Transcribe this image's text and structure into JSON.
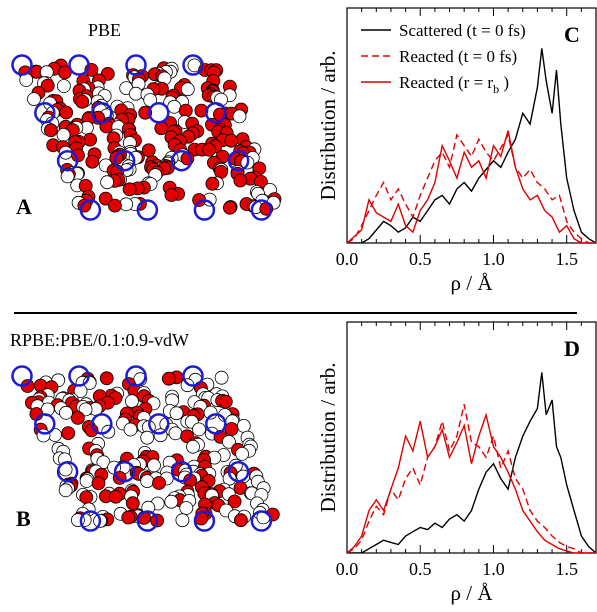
{
  "figure": {
    "panel_a_title": "PBE",
    "panel_b_title": "RPBE:PBE/0.1:0.9-vdW",
    "panel_a_letter": "A",
    "panel_b_letter": "B",
    "panel_c_letter": "C",
    "panel_d_letter": "D",
    "colors": {
      "scattered": "#000000",
      "reacted": "#e00000",
      "ring": "#1c1cd6",
      "site_fill": "#e00000",
      "site_open": "#ffffff"
    }
  },
  "structure_panels": [
    {
      "id": "A",
      "description_icon": "lattice-configuration-icon",
      "ring_marker_color": "blue",
      "filled_marker_color": "red"
    },
    {
      "id": "B",
      "description_icon": "lattice-configuration-icon",
      "ring_marker_color": "blue",
      "filled_marker_color": "red"
    }
  ],
  "chart_data": [
    {
      "type": "line",
      "panel": "C",
      "xlabel": "ρ / Å",
      "ylabel": "Distribution / arb.",
      "xlim": [
        0.0,
        1.7
      ],
      "xticks": [
        "0.0",
        "0.5",
        "1.0",
        "1.5"
      ],
      "legend_position": "top-left",
      "series": [
        {
          "name": "Scattered (t = 0 fs)",
          "style": "solid",
          "color": "#000000",
          "x": [
            0.0,
            0.05,
            0.1,
            0.15,
            0.2,
            0.25,
            0.3,
            0.35,
            0.4,
            0.45,
            0.5,
            0.55,
            0.6,
            0.65,
            0.7,
            0.75,
            0.8,
            0.85,
            0.9,
            0.95,
            1.0,
            1.05,
            1.1,
            1.15,
            1.2,
            1.25,
            1.3,
            1.33,
            1.36,
            1.4,
            1.43,
            1.46,
            1.5,
            1.55,
            1.6,
            1.65,
            1.7
          ],
          "y": [
            0.0,
            0.0,
            0.0,
            0.02,
            0.06,
            0.1,
            0.08,
            0.05,
            0.07,
            0.12,
            0.1,
            0.15,
            0.2,
            0.22,
            0.18,
            0.25,
            0.28,
            0.24,
            0.3,
            0.34,
            0.38,
            0.35,
            0.42,
            0.48,
            0.6,
            0.55,
            0.72,
            0.9,
            0.75,
            0.6,
            0.8,
            0.55,
            0.3,
            0.15,
            0.05,
            0.02,
            0.0
          ]
        },
        {
          "name": "Reacted (t = 0 fs)",
          "style": "dashed",
          "color": "#e00000",
          "x": [
            0.0,
            0.05,
            0.1,
            0.15,
            0.2,
            0.25,
            0.3,
            0.35,
            0.4,
            0.45,
            0.5,
            0.55,
            0.6,
            0.65,
            0.7,
            0.75,
            0.8,
            0.85,
            0.9,
            0.95,
            1.0,
            1.05,
            1.1,
            1.15,
            1.2,
            1.25,
            1.3,
            1.35,
            1.4,
            1.45,
            1.5,
            1.55,
            1.6,
            1.65,
            1.7
          ],
          "y": [
            0.0,
            0.02,
            0.08,
            0.15,
            0.22,
            0.28,
            0.2,
            0.25,
            0.18,
            0.12,
            0.22,
            0.3,
            0.38,
            0.42,
            0.35,
            0.5,
            0.45,
            0.4,
            0.48,
            0.42,
            0.38,
            0.44,
            0.5,
            0.35,
            0.3,
            0.34,
            0.28,
            0.25,
            0.2,
            0.22,
            0.1,
            0.05,
            0.02,
            0.0,
            0.0
          ]
        },
        {
          "name": "Reacted (r = r_b)",
          "legend_text": "Reacted (r = r",
          "legend_sub": "b",
          "legend_tail": ")",
          "style": "solid",
          "color": "#e00000",
          "x": [
            0.0,
            0.05,
            0.1,
            0.15,
            0.2,
            0.25,
            0.3,
            0.35,
            0.4,
            0.45,
            0.5,
            0.55,
            0.6,
            0.65,
            0.7,
            0.75,
            0.8,
            0.85,
            0.9,
            0.95,
            1.0,
            1.05,
            1.1,
            1.15,
            1.2,
            1.25,
            1.3,
            1.35,
            1.4,
            1.45,
            1.5,
            1.55,
            1.6,
            1.65,
            1.7
          ],
          "y": [
            0.0,
            0.03,
            0.06,
            0.2,
            0.14,
            0.12,
            0.1,
            0.18,
            0.08,
            0.05,
            0.15,
            0.2,
            0.28,
            0.45,
            0.38,
            0.3,
            0.42,
            0.35,
            0.38,
            0.3,
            0.45,
            0.4,
            0.52,
            0.35,
            0.25,
            0.2,
            0.22,
            0.15,
            0.12,
            0.05,
            0.08,
            0.02,
            0.0,
            0.0,
            0.0
          ]
        }
      ]
    },
    {
      "type": "line",
      "panel": "D",
      "xlabel": "ρ / Å",
      "ylabel": "Distribution / arb.",
      "xlim": [
        0.0,
        1.7
      ],
      "xticks": [
        "0.0",
        "0.5",
        "1.0",
        "1.5"
      ],
      "series": [
        {
          "name": "Scattered (t = 0 fs)",
          "style": "solid",
          "color": "#000000",
          "x": [
            0.0,
            0.05,
            0.1,
            0.15,
            0.2,
            0.25,
            0.3,
            0.35,
            0.4,
            0.45,
            0.5,
            0.55,
            0.6,
            0.65,
            0.7,
            0.75,
            0.8,
            0.85,
            0.9,
            0.95,
            1.0,
            1.05,
            1.1,
            1.15,
            1.2,
            1.25,
            1.3,
            1.33,
            1.36,
            1.4,
            1.43,
            1.46,
            1.5,
            1.55,
            1.6,
            1.65,
            1.7
          ],
          "y": [
            0.0,
            0.0,
            0.0,
            0.02,
            0.04,
            0.06,
            0.05,
            0.04,
            0.08,
            0.1,
            0.12,
            0.11,
            0.14,
            0.12,
            0.16,
            0.18,
            0.15,
            0.2,
            0.3,
            0.38,
            0.42,
            0.35,
            0.3,
            0.45,
            0.55,
            0.62,
            0.68,
            0.85,
            0.65,
            0.72,
            0.5,
            0.45,
            0.32,
            0.2,
            0.08,
            0.03,
            0.0
          ]
        },
        {
          "name": "Reacted (t = 0 fs)",
          "style": "dashed",
          "color": "#e00000",
          "x": [
            0.0,
            0.05,
            0.1,
            0.15,
            0.2,
            0.25,
            0.3,
            0.35,
            0.4,
            0.45,
            0.5,
            0.55,
            0.6,
            0.65,
            0.7,
            0.75,
            0.8,
            0.85,
            0.9,
            0.95,
            1.0,
            1.05,
            1.1,
            1.15,
            1.2,
            1.25,
            1.3,
            1.35,
            1.4,
            1.45,
            1.5,
            1.55,
            1.6,
            1.65,
            1.7
          ],
          "y": [
            0.0,
            0.02,
            0.06,
            0.15,
            0.22,
            0.18,
            0.3,
            0.25,
            0.35,
            0.4,
            0.32,
            0.45,
            0.5,
            0.62,
            0.48,
            0.55,
            0.7,
            0.52,
            0.5,
            0.45,
            0.55,
            0.4,
            0.48,
            0.35,
            0.3,
            0.2,
            0.15,
            0.12,
            0.08,
            0.05,
            0.03,
            0.02,
            0.0,
            0.0,
            0.0
          ]
        },
        {
          "name": "Reacted (r = r_b)",
          "style": "solid",
          "color": "#e00000",
          "x": [
            0.0,
            0.05,
            0.1,
            0.15,
            0.2,
            0.25,
            0.3,
            0.35,
            0.4,
            0.45,
            0.5,
            0.55,
            0.6,
            0.65,
            0.7,
            0.75,
            0.8,
            0.85,
            0.9,
            0.95,
            1.0,
            1.05,
            1.1,
            1.15,
            1.2,
            1.25,
            1.3,
            1.35,
            1.4,
            1.45,
            1.5,
            1.55,
            1.6,
            1.65,
            1.7
          ],
          "y": [
            0.0,
            0.03,
            0.08,
            0.2,
            0.25,
            0.2,
            0.3,
            0.4,
            0.55,
            0.48,
            0.62,
            0.45,
            0.5,
            0.58,
            0.45,
            0.52,
            0.6,
            0.42,
            0.55,
            0.65,
            0.5,
            0.45,
            0.38,
            0.3,
            0.2,
            0.15,
            0.1,
            0.06,
            0.04,
            0.02,
            0.01,
            0.0,
            0.0,
            0.0,
            0.0
          ]
        }
      ]
    }
  ]
}
